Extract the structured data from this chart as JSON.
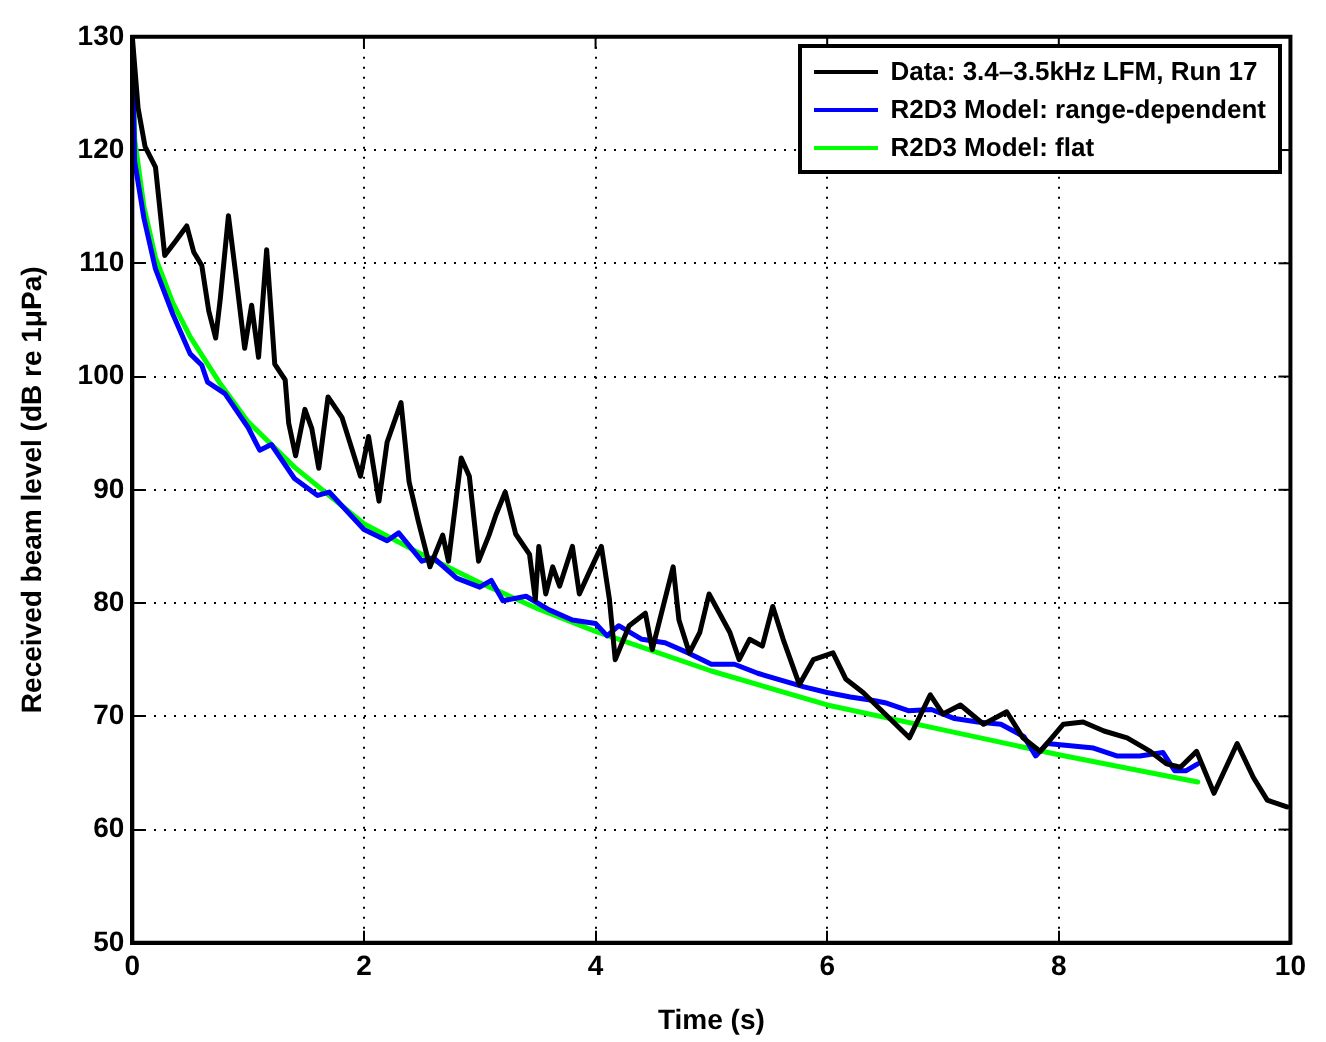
{
  "chart_data": {
    "type": "line",
    "xlabel": "Time (s)",
    "ylabel": "Received beam level (dB re 1μPa)",
    "xlim": [
      0,
      10
    ],
    "xticks": [
      0,
      2,
      4,
      6,
      8,
      10
    ],
    "ylim": [
      50,
      130
    ],
    "yticks": [
      50,
      60,
      70,
      80,
      90,
      100,
      110,
      120,
      130
    ],
    "grid": true,
    "legend": "top right",
    "marker": "none",
    "line_style": "solid",
    "series": [
      {
        "name": "Data: 3.4–3.5kHz LFM, Run 17",
        "color": "#000000",
        "x": [
          0,
          0.05,
          0.11,
          0.2,
          0.28,
          0.37,
          0.47,
          0.53,
          0.6,
          0.66,
          0.72,
          0.76,
          0.83,
          0.89,
          0.97,
          1.03,
          1.09,
          1.16,
          1.23,
          1.32,
          1.35,
          1.41,
          1.49,
          1.55,
          1.61,
          1.69,
          1.81,
          1.97,
          2.04,
          2.13,
          2.2,
          2.32,
          2.39,
          2.47,
          2.57,
          2.68,
          2.73,
          2.84,
          2.91,
          2.99,
          3.08,
          3.14,
          3.22,
          3.31,
          3.43,
          3.48,
          3.51,
          3.57,
          3.63,
          3.69,
          3.8,
          3.86,
          3.94,
          4.05,
          4.12,
          4.17,
          4.29,
          4.43,
          4.49,
          4.67,
          4.72,
          4.81,
          4.9,
          4.98,
          5.07,
          5.16,
          5.24,
          5.33,
          5.44,
          5.53,
          5.62,
          5.76,
          5.88,
          6.05,
          6.16,
          6.31,
          6.48,
          6.54,
          6.71,
          6.89,
          7.0,
          7.15,
          7.35,
          7.55,
          7.69,
          7.84,
          8.04,
          8.21,
          8.39,
          8.59,
          8.79,
          8.93,
          9.05,
          9.19,
          9.34,
          9.54,
          9.68,
          9.8,
          9.97
        ],
        "values": [
          130,
          123.7,
          120.3,
          118.5,
          110.7,
          111.9,
          113.3,
          111,
          109.8,
          105.8,
          103.4,
          106.9,
          114.2,
          109.3,
          102.5,
          106.3,
          101.7,
          111.2,
          101.1,
          99.7,
          95.9,
          93,
          97.1,
          95.4,
          91.9,
          98.2,
          96.4,
          91.2,
          94.7,
          89,
          94.2,
          97.7,
          90.7,
          87.2,
          83.2,
          86,
          83.7,
          92.8,
          91.2,
          83.7,
          86,
          87.8,
          89.8,
          86.1,
          84.3,
          80.3,
          85,
          80.8,
          83.2,
          81.5,
          85,
          80.8,
          82.6,
          85,
          80.3,
          75,
          78,
          79.1,
          75.9,
          83.2,
          78.5,
          75.6,
          77.4,
          80.8,
          79.1,
          77.4,
          75,
          76.8,
          76.2,
          79.7,
          76.8,
          72.8,
          75,
          75.6,
          73.3,
          72.1,
          70.4,
          69.8,
          68.1,
          71.9,
          70.2,
          71,
          69.3,
          70.4,
          68.1,
          66.9,
          69.3,
          69.5,
          68.7,
          68.1,
          66.9,
          65.8,
          65.5,
          66.9,
          63.2,
          67.6,
          64.6,
          62.6,
          62
        ]
      },
      {
        "name": "R2D3 Model: range-dependent",
        "color": "#0000ff",
        "x": [
          0,
          0.02,
          0.1,
          0.2,
          0.35,
          0.5,
          0.6,
          0.65,
          0.8,
          1.0,
          1.1,
          1.2,
          1.4,
          1.6,
          1.7,
          2.0,
          2.2,
          2.3,
          2.5,
          2.6,
          2.8,
          3.0,
          3.1,
          3.2,
          3.4,
          3.6,
          3.8,
          4.0,
          4.1,
          4.2,
          4.4,
          4.6,
          4.8,
          5.0,
          5.2,
          5.4,
          5.6,
          5.8,
          6.0,
          6.2,
          6.4,
          6.5,
          6.7,
          6.9,
          7.1,
          7.3,
          7.5,
          7.7,
          7.8,
          7.9,
          8.1,
          8.3,
          8.5,
          8.7,
          8.9,
          9.0,
          9.1,
          9.2
        ],
        "values": [
          130,
          119,
          114,
          109.5,
          105.5,
          102,
          101,
          99.5,
          98.5,
          95.5,
          93.5,
          94,
          91,
          89.5,
          89.8,
          86.5,
          85.5,
          86.2,
          83.7,
          84,
          82.2,
          81.4,
          82,
          80.2,
          80.6,
          79.4,
          78.5,
          78.2,
          77.1,
          78,
          76.8,
          76.5,
          75.6,
          74.6,
          74.6,
          73.8,
          73.2,
          72.6,
          72.1,
          71.7,
          71.4,
          71.2,
          70.5,
          70.6,
          69.8,
          69.5,
          69.3,
          68.2,
          66.5,
          67.6,
          67.4,
          67.2,
          66.5,
          66.5,
          66.8,
          65.2,
          65.2,
          65.8
        ]
      },
      {
        "name": "R2D3 Model: flat",
        "color": "#00ff00",
        "x": [
          0,
          0.02,
          0.1,
          0.2,
          0.35,
          0.5,
          0.75,
          1,
          1.4,
          2,
          2.5,
          3,
          3.5,
          4,
          5,
          6,
          7,
          8,
          9,
          9.2
        ],
        "values": [
          130,
          121,
          115,
          110.5,
          106.5,
          103.5,
          99.5,
          96,
          92,
          87,
          84.3,
          81.8,
          79.5,
          77.5,
          74,
          71,
          68.8,
          66.6,
          64.6,
          64.2
        ]
      }
    ]
  }
}
